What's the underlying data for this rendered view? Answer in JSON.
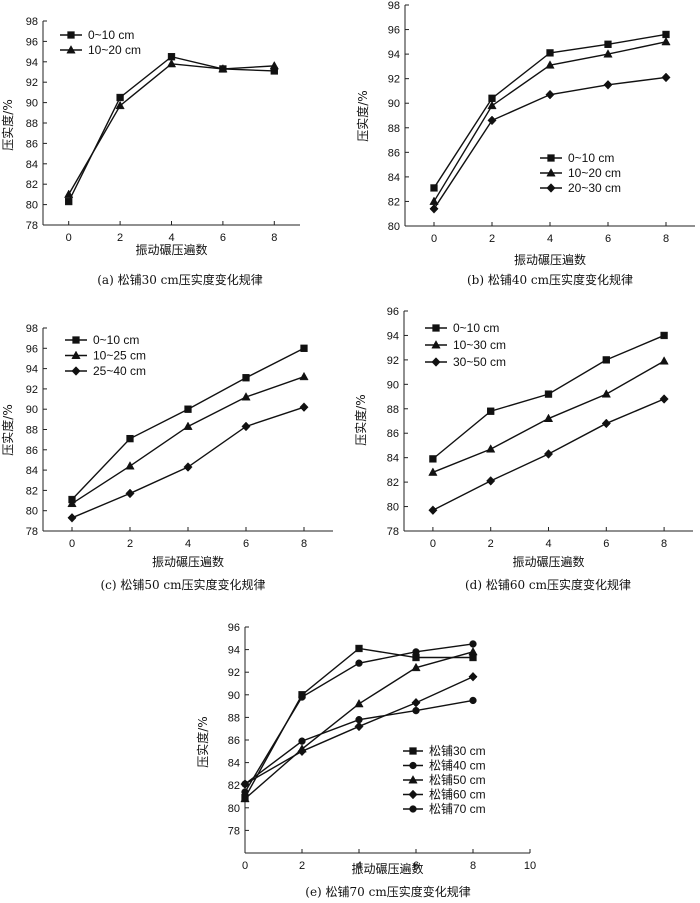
{
  "chart_data": [
    {
      "type": "line",
      "caption": "(a) 松铺30 cm压实度变化规律",
      "xlabel": "振动碾压遍数",
      "ylabel": "压实度/%",
      "x": [
        0,
        2,
        4,
        6,
        8
      ],
      "xticks": [
        0,
        2,
        4,
        6,
        8
      ],
      "xlim": [
        -1,
        9
      ],
      "ylim": [
        78,
        98
      ],
      "yticks": [
        78,
        80,
        82,
        84,
        86,
        88,
        90,
        92,
        94,
        96,
        98
      ],
      "legend_position": "top-left",
      "series": [
        {
          "name": "0~10 cm",
          "marker": "square",
          "values": [
            80.3,
            90.5,
            94.5,
            93.3,
            93.1
          ]
        },
        {
          "name": "10~20 cm",
          "marker": "triangle",
          "values": [
            81.0,
            89.7,
            93.8,
            93.3,
            93.6
          ]
        }
      ]
    },
    {
      "type": "line",
      "caption": "(b) 松铺40 cm压实度变化规律",
      "xlabel": "振动碾压遍数",
      "ylabel": "压实度/%",
      "x": [
        0,
        2,
        4,
        6,
        8
      ],
      "xticks": [
        0,
        2,
        4,
        6,
        8
      ],
      "xlim": [
        -1,
        9
      ],
      "ylim": [
        80,
        98
      ],
      "yticks": [
        80,
        82,
        84,
        86,
        88,
        90,
        92,
        94,
        96,
        98
      ],
      "legend_position": "bottom-right",
      "series": [
        {
          "name": "0~10 cm",
          "marker": "square",
          "values": [
            83.1,
            90.4,
            94.1,
            94.8,
            95.6
          ]
        },
        {
          "name": "10~20 cm",
          "marker": "triangle",
          "values": [
            82.0,
            89.8,
            93.1,
            94.0,
            95.0
          ]
        },
        {
          "name": "20~30 cm",
          "marker": "diamond",
          "values": [
            81.4,
            88.6,
            90.7,
            91.5,
            92.1
          ]
        }
      ]
    },
    {
      "type": "line",
      "caption": "(c) 松铺50 cm压实度变化规律",
      "xlabel": "振动碾压遍数",
      "ylabel": "压实度/%",
      "x": [
        0,
        2,
        4,
        6,
        8
      ],
      "xticks": [
        0,
        2,
        4,
        6,
        8
      ],
      "xlim": [
        -1,
        9
      ],
      "ylim": [
        78,
        98
      ],
      "yticks": [
        78,
        80,
        82,
        84,
        86,
        88,
        90,
        92,
        94,
        96,
        98
      ],
      "legend_position": "top-left",
      "series": [
        {
          "name": "0~10 cm",
          "marker": "square",
          "values": [
            81.1,
            87.1,
            90.0,
            93.1,
            96.0
          ]
        },
        {
          "name": "10~25 cm",
          "marker": "triangle",
          "values": [
            80.7,
            84.4,
            88.3,
            91.2,
            93.2
          ]
        },
        {
          "name": "25~40 cm",
          "marker": "diamond",
          "values": [
            79.3,
            81.7,
            84.3,
            88.3,
            90.2
          ]
        }
      ]
    },
    {
      "type": "line",
      "caption": "(d) 松铺60 cm压实度变化规律",
      "xlabel": "振动碾压遍数",
      "ylabel": "压实度/%",
      "x": [
        0,
        2,
        4,
        6,
        8
      ],
      "xticks": [
        0,
        2,
        4,
        6,
        8
      ],
      "xlim": [
        -1,
        9
      ],
      "ylim": [
        78,
        96
      ],
      "yticks": [
        78,
        80,
        82,
        84,
        86,
        88,
        90,
        92,
        94,
        96
      ],
      "legend_position": "top-left",
      "series": [
        {
          "name": "0~10 cm",
          "marker": "square",
          "values": [
            83.9,
            87.8,
            89.2,
            92.0,
            94.0
          ]
        },
        {
          "name": "10~30 cm",
          "marker": "triangle",
          "values": [
            82.8,
            84.7,
            87.2,
            89.2,
            91.9
          ]
        },
        {
          "name": "30~50 cm",
          "marker": "diamond",
          "values": [
            79.7,
            82.1,
            84.3,
            86.8,
            88.8
          ]
        }
      ]
    },
    {
      "type": "line",
      "caption": "(e) 松铺70 cm压实度变化规律",
      "xlabel": "振动碾压遍数",
      "ylabel": "压实度/%",
      "x": [
        0,
        2,
        4,
        6,
        8
      ],
      "xticks": [
        0,
        2,
        4,
        6,
        8,
        10
      ],
      "xlim": [
        0,
        10
      ],
      "ylim": [
        76,
        96
      ],
      "yticks": [
        78,
        80,
        82,
        84,
        86,
        88,
        90,
        92,
        94,
        96
      ],
      "legend_position": "bottom-right",
      "series": [
        {
          "name": "松铺30 cm",
          "marker": "square",
          "values": [
            80.9,
            90.0,
            94.1,
            93.3,
            93.3
          ]
        },
        {
          "name": "松铺40 cm",
          "marker": "circle",
          "values": [
            81.4,
            89.8,
            92.8,
            93.8,
            94.5
          ]
        },
        {
          "name": "松铺50 cm",
          "marker": "triangle",
          "values": [
            80.8,
            85.2,
            89.2,
            92.4,
            93.8
          ]
        },
        {
          "name": "松铺60 cm",
          "marker": "diamond",
          "values": [
            82.1,
            85.0,
            87.2,
            89.3,
            91.6
          ]
        },
        {
          "name": "松铺70 cm",
          "marker": "circle",
          "values": [
            82.1,
            85.9,
            87.8,
            88.6,
            89.5
          ]
        }
      ]
    }
  ]
}
